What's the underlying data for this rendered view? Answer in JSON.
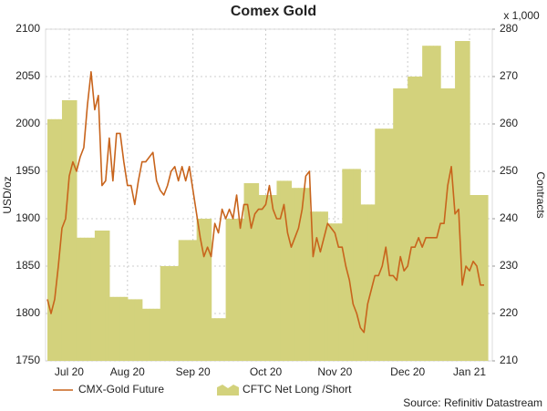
{
  "chart_data": {
    "type": "combo",
    "title": "Comex Gold",
    "y_label": "USD/oz",
    "y2_label": "Contracts",
    "y2_scale_label": "x 1,000",
    "source": "Source: Refinitiv Datastream",
    "categories": [
      null,
      null,
      null,
      null,
      null,
      null,
      "Jul 20",
      null,
      null,
      null,
      null,
      null,
      null,
      null,
      null,
      null,
      null,
      null,
      null,
      null,
      null,
      null,
      "Aug 20",
      null,
      null,
      null,
      null,
      null,
      null,
      null,
      null,
      null,
      null,
      null,
      null,
      null,
      null,
      null,
      null,
      null,
      "Sep 20",
      null,
      null,
      null,
      null,
      null,
      null,
      null,
      null,
      null,
      null,
      null,
      null,
      null,
      null,
      null,
      null,
      null,
      null,
      null,
      "Oct 20",
      null,
      null,
      null,
      null,
      null,
      null,
      null,
      null,
      null,
      null,
      null,
      null,
      null,
      null,
      null,
      null,
      null,
      null,
      "Nov 20",
      null,
      null,
      null,
      null,
      null,
      null,
      null,
      null,
      null,
      null,
      null,
      null,
      null,
      null,
      null,
      null,
      null,
      null,
      null,
      "Dec 20",
      null,
      null,
      null,
      null,
      null,
      null,
      null,
      null,
      null,
      null,
      null,
      null,
      null,
      null,
      null,
      null,
      "Jan 21",
      null,
      null,
      null,
      null
    ],
    "series": [
      {
        "name": "CMX-Gold Future",
        "type": "line",
        "color": "#c8641c",
        "values": [
          1815,
          1800,
          1815,
          1850,
          1890,
          1900,
          1945,
          1960,
          1950,
          1965,
          1975,
          2020,
          2055,
          2015,
          2030,
          1935,
          1940,
          1985,
          1940,
          1990,
          1990,
          1960,
          1935,
          1935,
          1915,
          1940,
          1960,
          1960,
          1965,
          1970,
          1940,
          1930,
          1925,
          1935,
          1950,
          1955,
          1940,
          1955,
          1940,
          1955,
          1930,
          1905,
          1880,
          1860,
          1870,
          1860,
          1895,
          1885,
          1910,
          1900,
          1910,
          1900,
          1925,
          1890,
          1915,
          1915,
          1890,
          1905,
          1910,
          1910,
          1915,
          1935,
          1910,
          1900,
          1900,
          1915,
          1885,
          1870,
          1880,
          1890,
          1910,
          1945,
          1950,
          1860,
          1880,
          1865,
          1880,
          1895,
          1890,
          1885,
          1870,
          1870,
          1850,
          1835,
          1810,
          1800,
          1785,
          1780,
          1810,
          1825,
          1840,
          1840,
          1850,
          1870,
          1840,
          1840,
          1835,
          1860,
          1845,
          1850,
          1870,
          1870,
          1880,
          1870,
          1880,
          1880,
          1880,
          1880,
          1895,
          1895,
          1935,
          1955,
          1905,
          1910,
          1830,
          1850,
          1845,
          1855,
          1850,
          1830,
          1830
        ]
      },
      {
        "name": "CFTC Net Long /Short",
        "type": "area",
        "axis": "y2",
        "color": "#d3d27c",
        "values": [
          261,
          261,
          261,
          261,
          265,
          265,
          265,
          265,
          236,
          236,
          236,
          236,
          236,
          237.5,
          237.5,
          237.5,
          237.5,
          223.5,
          223.5,
          223.5,
          223.5,
          223.5,
          223,
          223,
          223,
          223,
          221,
          221,
          221,
          221,
          221,
          230,
          230,
          230,
          230,
          230,
          235.5,
          235.5,
          235.5,
          235.5,
          235.5,
          240,
          240,
          240,
          240,
          219,
          219,
          219,
          219,
          240,
          240,
          240,
          240,
          240,
          247.5,
          247.5,
          247.5,
          247.5,
          245,
          245,
          245,
          245,
          245,
          248,
          248,
          248,
          248,
          246.5,
          246.5,
          246.5,
          246.5,
          246.5,
          241.5,
          241.5,
          241.5,
          241.5,
          241.5,
          239,
          239,
          239,
          239,
          250.5,
          250.5,
          250.5,
          250.5,
          250.5,
          243,
          243,
          243,
          243,
          259,
          259,
          259,
          259,
          259,
          267.5,
          267.5,
          267.5,
          267.5,
          270,
          270,
          270,
          270,
          276.5,
          276.5,
          276.5,
          276.5,
          276.5,
          267.5,
          267.5,
          267.5,
          267.5,
          277.5,
          277.5,
          277.5,
          277.5,
          245,
          245,
          245,
          245,
          245
        ]
      }
    ],
    "ylim": [
      1750,
      2100
    ],
    "yticks": [
      1750,
      1800,
      1850,
      1900,
      1950,
      2000,
      2050,
      2100
    ],
    "y2lim": [
      210,
      280
    ],
    "y2ticks": [
      210,
      220,
      230,
      240,
      250,
      260,
      270,
      280
    ],
    "grid": true
  }
}
